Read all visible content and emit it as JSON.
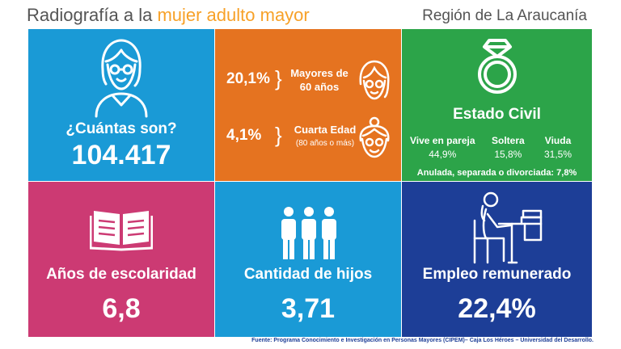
{
  "header": {
    "title_prefix": "Radiografía a la ",
    "title_highlight": "mujer adulto mayor",
    "region": "Región de La Araucanía"
  },
  "colors": {
    "title_text": "#555555",
    "title_highlight": "#f7a128",
    "blue": "#1a9ad6",
    "orange": "#e57320",
    "green": "#2ca449",
    "magenta": "#cc3a73",
    "navy": "#1d3e97"
  },
  "tiles": {
    "count": {
      "icon": "elderly-woman-icon",
      "label": "¿Cuántas son?",
      "value": "104.417"
    },
    "age": {
      "over60": {
        "value": "20,1%",
        "label_line1": "Mayores de",
        "label_line2": "60 años",
        "icon": "elderly-woman-face-icon"
      },
      "fourth_age": {
        "value": "4,1%",
        "label_line1": "Cuarta Edad",
        "label_line2": "(80 años o más)",
        "icon": "elderly-woman-bun-icon"
      }
    },
    "civil": {
      "icon": "ring-icon",
      "title": "Estado Civil",
      "items": [
        {
          "label": "Vive en pareja",
          "value": "44,9%"
        },
        {
          "label": "Soltera",
          "value": "15,8%"
        },
        {
          "label": "Viuda",
          "value": "31,5%"
        }
      ],
      "footer": "Anulada, separada o divorciada: 7,8%"
    },
    "schooling": {
      "icon": "open-book-icon",
      "label": "Años de escolaridad",
      "value": "6,8"
    },
    "children": {
      "icon": "people-icon",
      "label": "Cantidad de hijos",
      "value": "3,71"
    },
    "employment": {
      "icon": "woman-at-desk-icon",
      "label": "Empleo remunerado",
      "value": "22,4%"
    }
  },
  "source": "Fuente: Programa Conocimiento e Investigación en Personas Mayores (CIPEM)– Caja Los Héroes – Universidad del Desarrollo."
}
